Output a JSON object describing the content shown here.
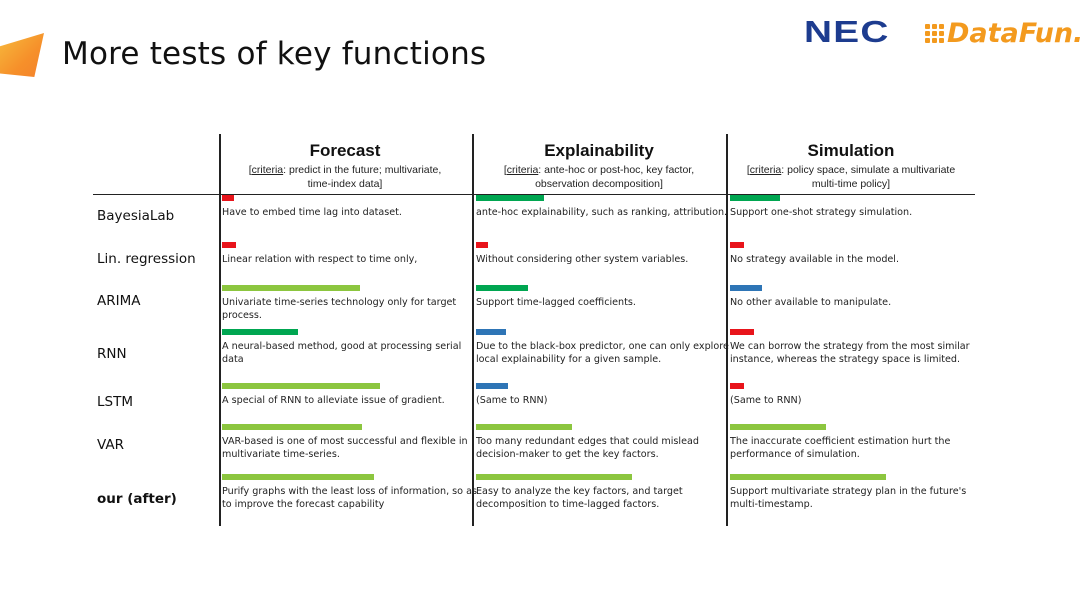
{
  "slide": {
    "title": "More tests of key functions"
  },
  "logos": {
    "nec": "NEC",
    "datafun": "DataFun."
  },
  "colors": {
    "red": "#e8141b",
    "green": "#00a651",
    "lightgreen": "#8cc63f",
    "blue": "#2e75b6"
  },
  "columns": [
    {
      "title": "Forecast",
      "criteria_key": "criteria",
      "criteria_lines": [
        ": predict in the future; multivariate,",
        "time-index data]"
      ]
    },
    {
      "title": "Explainability",
      "criteria_key": "criteria",
      "criteria_lines": [
        ": ante-hoc or post-hoc, key factor,",
        "observation decomposition]"
      ]
    },
    {
      "title": "Simulation",
      "criteria_key": "criteria",
      "criteria_lines": [
        ": policy space, simulate a multivariate",
        "multi-time policy]"
      ]
    }
  ],
  "rows": [
    {
      "label": "BayesiaLab",
      "cells": [
        {
          "bar_color": "red",
          "text_lines": [
            "Have to embed time lag into dataset."
          ]
        },
        {
          "bar_color": "green",
          "text_lines": [
            "ante-hoc explainability, such as ranking, attribution."
          ]
        },
        {
          "bar_color": "green",
          "text_lines": [
            "Support one-shot strategy simulation."
          ]
        }
      ]
    },
    {
      "label": "Lin. regression",
      "cells": [
        {
          "bar_color": "red",
          "text_lines": [
            "Linear relation with respect to time only,"
          ]
        },
        {
          "bar_color": "red",
          "text_lines": [
            "Without considering other system variables."
          ]
        },
        {
          "bar_color": "red",
          "text_lines": [
            "No strategy available in the model."
          ]
        }
      ]
    },
    {
      "label": "ARIMA",
      "cells": [
        {
          "bar_color": "lightgreen",
          "text_lines": [
            "Univariate time-series technology only for target",
            "process."
          ]
        },
        {
          "bar_color": "green",
          "text_lines": [
            "Support time-lagged coefficients."
          ]
        },
        {
          "bar_color": "blue",
          "text_lines": [
            "No other available to manipulate."
          ]
        }
      ]
    },
    {
      "label": "RNN",
      "cells": [
        {
          "bar_color": "green",
          "text_lines": [
            "A neural-based method, good at processing serial",
            "data"
          ]
        },
        {
          "bar_color": "blue",
          "text_lines": [
            "Due to the black-box predictor, one can only explore",
            "local explainability for a given sample."
          ]
        },
        {
          "bar_color": "red",
          "text_lines": [
            "We can borrow the strategy from the most similar",
            "instance, whereas the strategy space is limited."
          ]
        }
      ]
    },
    {
      "label": "LSTM",
      "cells": [
        {
          "bar_color": "lightgreen",
          "text_lines": [
            "A special of RNN to alleviate issue of gradient."
          ]
        },
        {
          "bar_color": "blue",
          "text_lines": [
            "(Same to RNN)"
          ]
        },
        {
          "bar_color": "red",
          "text_lines": [
            "(Same to RNN)"
          ]
        }
      ]
    },
    {
      "label": "VAR",
      "cells": [
        {
          "bar_color": "lightgreen",
          "text_lines": [
            "VAR-based is one of most successful and flexible in",
            "multivariate time-series."
          ]
        },
        {
          "bar_color": "lightgreen",
          "text_lines": [
            "Too many redundant edges that could mislead",
            "decision-maker to get the key factors."
          ]
        },
        {
          "bar_color": "lightgreen",
          "text_lines": [
            "The inaccurate coefficient estimation hurt the",
            "performance of simulation."
          ]
        }
      ]
    },
    {
      "label": "our (after)",
      "bold": true,
      "cells": [
        {
          "bar_color": "lightgreen",
          "text_lines": [
            "Purify graphs with the least loss of information, so as",
            "to improve the forecast capability"
          ]
        },
        {
          "bar_color": "lightgreen",
          "text_lines": [
            "Easy to analyze the key factors, and target",
            "decomposition to time-lagged factors."
          ]
        },
        {
          "bar_color": "lightgreen",
          "text_lines": [
            "Support multivariate strategy plan in the future's",
            "multi-timestamp."
          ]
        }
      ]
    }
  ]
}
